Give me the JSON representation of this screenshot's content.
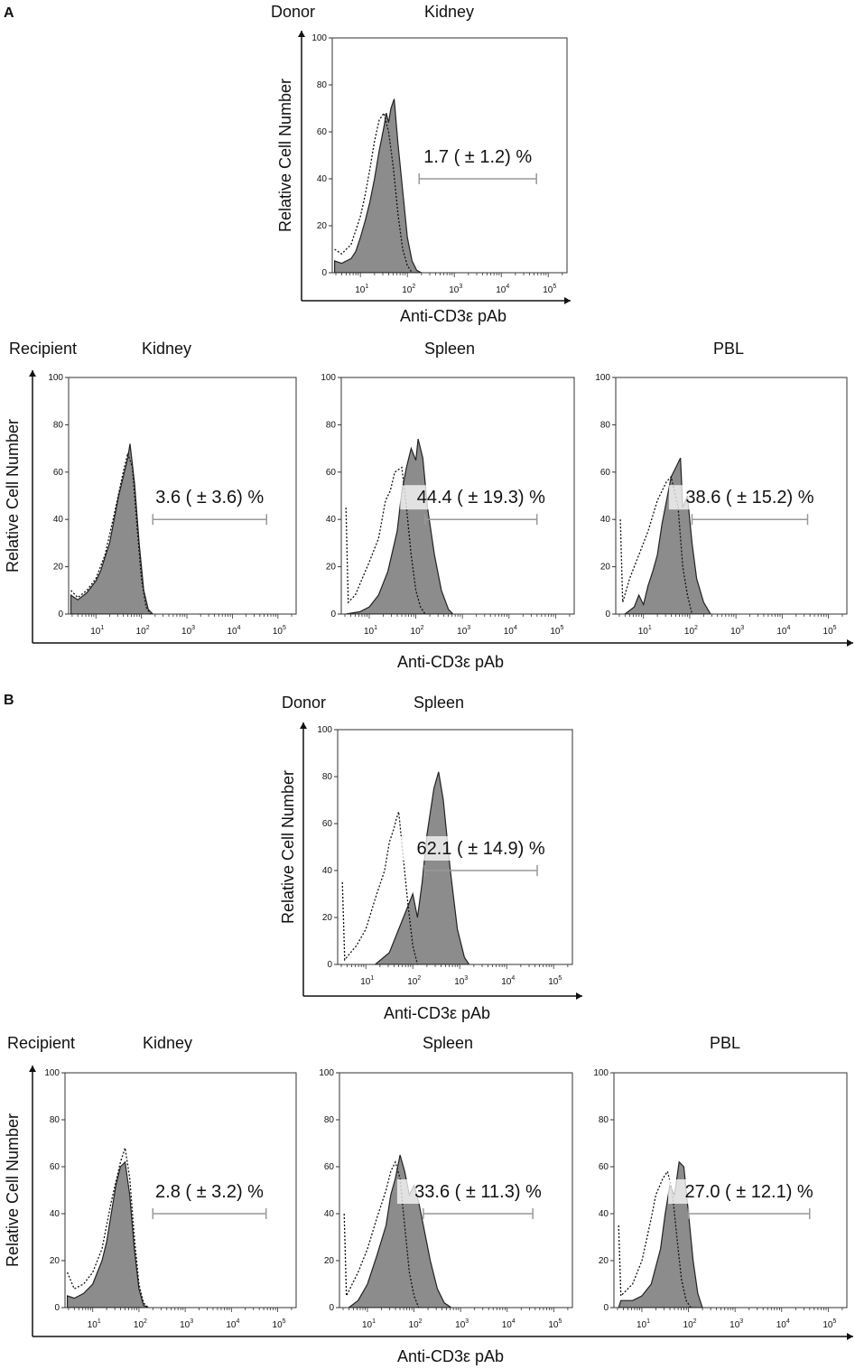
{
  "panel_a_letter": "A",
  "panel_b_letter": "B",
  "chart_data": [
    {
      "id": "a-donor-kidney",
      "type": "histogram",
      "panel": "A",
      "role": "Donor",
      "tissue": "Kidney",
      "row_label": "Donor",
      "title": "Kidney",
      "ylabel": "Relative Cell Number",
      "xlabel": "Anti-CD3ε pAb",
      "ylim": [
        0,
        100
      ],
      "xscale": "log",
      "xlim_log10": [
        0.4,
        5.4
      ],
      "yticks": [
        "0",
        "20",
        "40",
        "60",
        "80",
        "100"
      ],
      "xticks_exp": [
        "1",
        "2",
        "3",
        "4",
        "5"
      ],
      "annotation": "1.7 ( ± 1.2) %",
      "gate_log10": [
        2.25,
        4.75
      ],
      "filled_series": [
        [
          0.45,
          5
        ],
        [
          0.6,
          4
        ],
        [
          0.8,
          6
        ],
        [
          0.9,
          9
        ],
        [
          1.0,
          15
        ],
        [
          1.1,
          22
        ],
        [
          1.2,
          30
        ],
        [
          1.3,
          40
        ],
        [
          1.4,
          52
        ],
        [
          1.5,
          62
        ],
        [
          1.55,
          68
        ],
        [
          1.6,
          64
        ],
        [
          1.65,
          70
        ],
        [
          1.72,
          74
        ],
        [
          1.8,
          55
        ],
        [
          1.9,
          35
        ],
        [
          2.0,
          15
        ],
        [
          2.1,
          5
        ],
        [
          2.2,
          1
        ],
        [
          2.3,
          0
        ]
      ],
      "control_series": [
        [
          0.45,
          10
        ],
        [
          0.6,
          8
        ],
        [
          0.8,
          12
        ],
        [
          0.9,
          18
        ],
        [
          1.0,
          24
        ],
        [
          1.1,
          33
        ],
        [
          1.2,
          44
        ],
        [
          1.3,
          56
        ],
        [
          1.4,
          65
        ],
        [
          1.5,
          68
        ],
        [
          1.6,
          60
        ],
        [
          1.7,
          45
        ],
        [
          1.8,
          25
        ],
        [
          1.9,
          10
        ],
        [
          2.0,
          3
        ],
        [
          2.1,
          0
        ]
      ]
    },
    {
      "id": "a-recipient-kidney",
      "type": "histogram",
      "panel": "A",
      "role": "Recipient",
      "tissue": "Kidney",
      "row_label": "Recipient",
      "title": "Kidney",
      "ylabel": "Relative Cell Number",
      "xlabel": "Anti-CD3ε pAb",
      "ylim": [
        0,
        100
      ],
      "xscale": "log",
      "xlim_log10": [
        0.4,
        5.4
      ],
      "yticks": [
        "0",
        "20",
        "40",
        "60",
        "80",
        "100"
      ],
      "xticks_exp": [
        "1",
        "2",
        "3",
        "4",
        "5"
      ],
      "annotation": "3.6 ( ± 3.6) %",
      "gate_log10": [
        2.25,
        4.75
      ],
      "filled_series": [
        [
          0.45,
          8
        ],
        [
          0.6,
          6
        ],
        [
          0.8,
          9
        ],
        [
          1.0,
          14
        ],
        [
          1.1,
          18
        ],
        [
          1.2,
          24
        ],
        [
          1.3,
          30
        ],
        [
          1.4,
          40
        ],
        [
          1.5,
          50
        ],
        [
          1.6,
          58
        ],
        [
          1.7,
          66
        ],
        [
          1.75,
          72
        ],
        [
          1.85,
          55
        ],
        [
          1.95,
          30
        ],
        [
          2.05,
          10
        ],
        [
          2.15,
          2
        ],
        [
          2.25,
          0
        ]
      ],
      "control_series": [
        [
          0.45,
          10
        ],
        [
          0.6,
          7
        ],
        [
          0.8,
          10
        ],
        [
          1.0,
          15
        ],
        [
          1.2,
          25
        ],
        [
          1.4,
          42
        ],
        [
          1.6,
          60
        ],
        [
          1.7,
          68
        ],
        [
          1.8,
          62
        ],
        [
          1.9,
          38
        ],
        [
          2.0,
          15
        ],
        [
          2.1,
          3
        ],
        [
          2.2,
          0
        ]
      ]
    },
    {
      "id": "a-recipient-spleen",
      "type": "histogram",
      "panel": "A",
      "role": "Recipient",
      "tissue": "Spleen",
      "title": "Spleen",
      "xlabel": "Anti-CD3ε pAb",
      "ylim": [
        0,
        100
      ],
      "xscale": "log",
      "xlim_log10": [
        0.4,
        5.4
      ],
      "yticks": [
        "0",
        "20",
        "40",
        "60",
        "80",
        "100"
      ],
      "xticks_exp": [
        "1",
        "2",
        "3",
        "4",
        "5"
      ],
      "annotation": "44.4 ( ± 19.3) %",
      "gate_log10": [
        2.2,
        4.6
      ],
      "filled_series": [
        [
          0.5,
          0
        ],
        [
          0.8,
          1
        ],
        [
          1.0,
          3
        ],
        [
          1.2,
          8
        ],
        [
          1.4,
          18
        ],
        [
          1.6,
          35
        ],
        [
          1.7,
          52
        ],
        [
          1.8,
          62
        ],
        [
          1.9,
          70
        ],
        [
          2.0,
          65
        ],
        [
          2.05,
          74
        ],
        [
          2.15,
          66
        ],
        [
          2.25,
          45
        ],
        [
          2.4,
          25
        ],
        [
          2.55,
          10
        ],
        [
          2.7,
          2
        ],
        [
          2.8,
          0
        ]
      ],
      "control_series": [
        [
          0.5,
          45
        ],
        [
          0.55,
          5
        ],
        [
          0.7,
          8
        ],
        [
          0.85,
          15
        ],
        [
          1.0,
          22
        ],
        [
          1.2,
          32
        ],
        [
          1.35,
          48
        ],
        [
          1.45,
          52
        ],
        [
          1.55,
          60
        ],
        [
          1.7,
          62
        ],
        [
          1.8,
          45
        ],
        [
          1.9,
          25
        ],
        [
          2.0,
          10
        ],
        [
          2.1,
          3
        ],
        [
          2.2,
          0
        ]
      ]
    },
    {
      "id": "a-recipient-pbl",
      "type": "histogram",
      "panel": "A",
      "role": "Recipient",
      "tissue": "PBL",
      "title": "PBL",
      "xlabel": "Anti-CD3ε pAb",
      "ylim": [
        0,
        100
      ],
      "xscale": "log",
      "xlim_log10": [
        0.4,
        5.4
      ],
      "yticks": [
        "0",
        "20",
        "40",
        "60",
        "80",
        "100"
      ],
      "xticks_exp": [
        "1",
        "2",
        "3",
        "4",
        "5"
      ],
      "annotation": "38.6 ( ± 15.2) %",
      "gate_log10": [
        2.05,
        4.55
      ],
      "filled_series": [
        [
          0.6,
          0
        ],
        [
          0.8,
          3
        ],
        [
          0.9,
          8
        ],
        [
          1.0,
          4
        ],
        [
          1.1,
          12
        ],
        [
          1.2,
          18
        ],
        [
          1.3,
          25
        ],
        [
          1.4,
          38
        ],
        [
          1.5,
          48
        ],
        [
          1.6,
          58
        ],
        [
          1.7,
          62
        ],
        [
          1.8,
          66
        ],
        [
          1.85,
          45
        ],
        [
          1.95,
          50
        ],
        [
          2.05,
          30
        ],
        [
          2.15,
          15
        ],
        [
          2.3,
          5
        ],
        [
          2.45,
          0
        ]
      ],
      "control_series": [
        [
          0.5,
          40
        ],
        [
          0.55,
          5
        ],
        [
          0.7,
          15
        ],
        [
          0.9,
          25
        ],
        [
          1.1,
          35
        ],
        [
          1.3,
          48
        ],
        [
          1.5,
          56
        ],
        [
          1.6,
          58
        ],
        [
          1.75,
          45
        ],
        [
          1.85,
          20
        ],
        [
          1.95,
          8
        ],
        [
          2.05,
          0
        ]
      ]
    },
    {
      "id": "b-donor-spleen",
      "type": "histogram",
      "panel": "B",
      "role": "Donor",
      "tissue": "Spleen",
      "row_label": "Donor",
      "title": "Spleen",
      "ylabel": "Relative Cell Number",
      "xlabel": "Anti-CD3ε pAb",
      "ylim": [
        0,
        100
      ],
      "xscale": "log",
      "xlim_log10": [
        0.4,
        5.4
      ],
      "yticks": [
        "0",
        "20",
        "40",
        "60",
        "80",
        "100"
      ],
      "xticks_exp": [
        "1",
        "2",
        "3",
        "4",
        "5"
      ],
      "annotation": "62.1 ( ± 14.9) %",
      "gate_log10": [
        2.25,
        4.65
      ],
      "filled_series": [
        [
          1.2,
          0
        ],
        [
          1.5,
          5
        ],
        [
          1.7,
          15
        ],
        [
          1.9,
          25
        ],
        [
          2.0,
          30
        ],
        [
          2.1,
          20
        ],
        [
          2.2,
          35
        ],
        [
          2.3,
          55
        ],
        [
          2.45,
          75
        ],
        [
          2.55,
          82
        ],
        [
          2.65,
          70
        ],
        [
          2.8,
          40
        ],
        [
          2.95,
          15
        ],
        [
          3.1,
          3
        ],
        [
          3.2,
          0
        ]
      ],
      "control_series": [
        [
          0.5,
          35
        ],
        [
          0.55,
          2
        ],
        [
          0.8,
          8
        ],
        [
          1.0,
          15
        ],
        [
          1.2,
          28
        ],
        [
          1.4,
          40
        ],
        [
          1.5,
          52
        ],
        [
          1.6,
          58
        ],
        [
          1.65,
          62
        ],
        [
          1.7,
          65
        ],
        [
          1.8,
          45
        ],
        [
          1.9,
          25
        ],
        [
          2.0,
          8
        ],
        [
          2.1,
          0
        ]
      ]
    },
    {
      "id": "b-recipient-kidney",
      "type": "histogram",
      "panel": "B",
      "role": "Recipient",
      "tissue": "Kidney",
      "row_label": "Recipient",
      "title": "Kidney",
      "ylabel": "Relative Cell Number",
      "xlabel": "Anti-CD3ε pAb",
      "ylim": [
        0,
        100
      ],
      "xscale": "log",
      "xlim_log10": [
        0.4,
        5.4
      ],
      "yticks": [
        "0",
        "20",
        "40",
        "60",
        "80",
        "100"
      ],
      "xticks_exp": [
        "1",
        "2",
        "3",
        "4",
        "5"
      ],
      "annotation": "2.8 ( ± 3.2) %",
      "gate_log10": [
        2.3,
        4.75
      ],
      "filled_series": [
        [
          0.45,
          5
        ],
        [
          0.6,
          4
        ],
        [
          0.8,
          6
        ],
        [
          1.0,
          10
        ],
        [
          1.1,
          15
        ],
        [
          1.2,
          20
        ],
        [
          1.3,
          28
        ],
        [
          1.4,
          40
        ],
        [
          1.5,
          52
        ],
        [
          1.6,
          60
        ],
        [
          1.7,
          62
        ],
        [
          1.8,
          48
        ],
        [
          1.9,
          25
        ],
        [
          2.0,
          8
        ],
        [
          2.1,
          1
        ],
        [
          2.2,
          0
        ]
      ],
      "control_series": [
        [
          0.45,
          15
        ],
        [
          0.6,
          8
        ],
        [
          0.8,
          10
        ],
        [
          1.0,
          15
        ],
        [
          1.2,
          25
        ],
        [
          1.4,
          45
        ],
        [
          1.6,
          62
        ],
        [
          1.7,
          68
        ],
        [
          1.8,
          55
        ],
        [
          1.9,
          30
        ],
        [
          2.0,
          10
        ],
        [
          2.1,
          2
        ],
        [
          2.2,
          0
        ]
      ]
    },
    {
      "id": "b-recipient-spleen",
      "type": "histogram",
      "panel": "B",
      "role": "Recipient",
      "tissue": "Spleen",
      "title": "Spleen",
      "xlabel": "Anti-CD3ε pAb",
      "ylim": [
        0,
        100
      ],
      "xscale": "log",
      "xlim_log10": [
        0.4,
        5.4
      ],
      "yticks": [
        "0",
        "20",
        "40",
        "60",
        "80",
        "100"
      ],
      "xticks_exp": [
        "1",
        "2",
        "3",
        "4",
        "5"
      ],
      "annotation": "33.6 ( ± 11.3) %",
      "gate_log10": [
        2.2,
        4.55
      ],
      "filled_series": [
        [
          0.6,
          0
        ],
        [
          0.8,
          3
        ],
        [
          1.0,
          10
        ],
        [
          1.2,
          22
        ],
        [
          1.4,
          35
        ],
        [
          1.5,
          48
        ],
        [
          1.6,
          55
        ],
        [
          1.7,
          65
        ],
        [
          1.8,
          58
        ],
        [
          1.9,
          48
        ],
        [
          2.0,
          52
        ],
        [
          2.1,
          45
        ],
        [
          2.2,
          35
        ],
        [
          2.35,
          20
        ],
        [
          2.5,
          8
        ],
        [
          2.65,
          2
        ],
        [
          2.8,
          0
        ]
      ],
      "control_series": [
        [
          0.5,
          40
        ],
        [
          0.55,
          5
        ],
        [
          0.8,
          15
        ],
        [
          1.0,
          25
        ],
        [
          1.2,
          38
        ],
        [
          1.4,
          50
        ],
        [
          1.5,
          58
        ],
        [
          1.6,
          62
        ],
        [
          1.7,
          55
        ],
        [
          1.8,
          35
        ],
        [
          1.9,
          15
        ],
        [
          2.0,
          5
        ],
        [
          2.1,
          0
        ]
      ]
    },
    {
      "id": "b-recipient-pbl",
      "type": "histogram",
      "panel": "B",
      "role": "Recipient",
      "tissue": "PBL",
      "title": "PBL",
      "xlabel": "Anti-CD3ε pAb",
      "ylim": [
        0,
        100
      ],
      "xscale": "log",
      "xlim_log10": [
        0.4,
        5.4
      ],
      "yticks": [
        "0",
        "20",
        "40",
        "60",
        "80",
        "100"
      ],
      "xticks_exp": [
        "1",
        "2",
        "3",
        "4",
        "5"
      ],
      "annotation": "27.0 ( ± 12.1) %",
      "gate_log10": [
        2.0,
        4.6
      ],
      "filled_series": [
        [
          0.5,
          0
        ],
        [
          0.55,
          3
        ],
        [
          0.8,
          3
        ],
        [
          1.0,
          5
        ],
        [
          1.2,
          10
        ],
        [
          1.4,
          25
        ],
        [
          1.5,
          40
        ],
        [
          1.6,
          52
        ],
        [
          1.7,
          48
        ],
        [
          1.8,
          62
        ],
        [
          1.9,
          60
        ],
        [
          2.0,
          40
        ],
        [
          2.1,
          20
        ],
        [
          2.2,
          6
        ],
        [
          2.3,
          0
        ]
      ],
      "control_series": [
        [
          0.5,
          35
        ],
        [
          0.55,
          5
        ],
        [
          0.8,
          10
        ],
        [
          1.0,
          20
        ],
        [
          1.2,
          38
        ],
        [
          1.3,
          48
        ],
        [
          1.45,
          55
        ],
        [
          1.55,
          58
        ],
        [
          1.65,
          50
        ],
        [
          1.75,
          30
        ],
        [
          1.85,
          12
        ],
        [
          1.95,
          3
        ],
        [
          2.05,
          0
        ]
      ]
    }
  ]
}
